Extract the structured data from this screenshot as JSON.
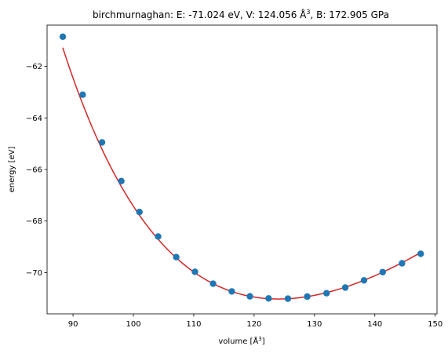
{
  "chart_data": {
    "type": "scatter",
    "title_main": "birchmurnaghan: E: -71.024 eV, V: 124.056 Å",
    "title_sup": "3",
    "title_rest": ", B: 172.905 GPa",
    "xlabel_main": "volume [Å",
    "xlabel_sup": "3",
    "xlabel_rest": "]",
    "ylabel": "energy [eV]",
    "xlim": [
      85.7,
      150.3
    ],
    "ylim": [
      -71.6,
      -60.4
    ],
    "xticks": [
      90,
      100,
      110,
      120,
      130,
      140,
      150
    ],
    "xtick_labels": [
      "90",
      "100",
      "110",
      "120",
      "130",
      "140",
      "150"
    ],
    "yticks": [
      -70,
      -68,
      -66,
      -64,
      -62
    ],
    "ytick_labels": [
      "−70",
      "−68",
      "−66",
      "−64",
      "−62"
    ],
    "grid": false,
    "fit": {
      "name": "",
      "color": "#d62728",
      "E0": -71.024,
      "V0": 124.056,
      "B_GPa": 172.905,
      "x_range": [
        88.3,
        147.6
      ]
    },
    "series": [
      {
        "name": "",
        "color": "#1f77b4",
        "x": [
          88.3,
          91.6,
          94.8,
          98.0,
          101.0,
          104.1,
          107.1,
          110.2,
          113.2,
          116.3,
          119.3,
          122.4,
          125.6,
          128.8,
          132.0,
          135.1,
          138.2,
          141.3,
          144.5,
          147.6
        ],
        "y": [
          -60.85,
          -63.1,
          -64.95,
          -66.45,
          -67.65,
          -68.6,
          -69.4,
          -69.97,
          -70.43,
          -70.73,
          -70.92,
          -71.0,
          -71.01,
          -70.93,
          -70.8,
          -70.58,
          -70.3,
          -69.98,
          -69.64,
          -69.27
        ]
      }
    ]
  }
}
